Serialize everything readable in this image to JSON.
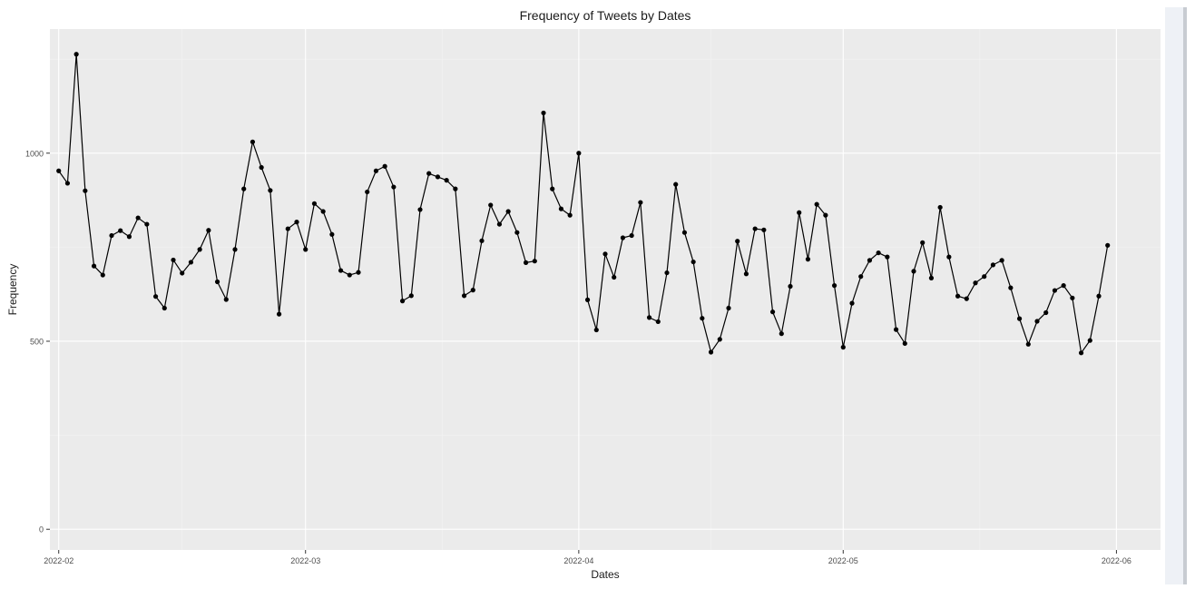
{
  "chart_data": {
    "type": "line",
    "title": "Frequency of Tweets by Dates",
    "xlabel": "Dates",
    "ylabel": "Frequency",
    "x_ticks": [
      "2022-02",
      "2022-03",
      "2022-04",
      "2022-05",
      "2022-06"
    ],
    "y_ticks": [
      0,
      500,
      1000
    ],
    "xlim": [
      "2022-01-31",
      "2022-06-06"
    ],
    "ylim": [
      -55,
      1330
    ],
    "grid": true,
    "legend": "none",
    "colors": {
      "panel": "#ebebeb",
      "grid_major": "#ffffff",
      "grid_minor": "#f3f3f3",
      "line": "#000000",
      "text": "#1a1a1a",
      "tick_text": "#4d4d4d"
    },
    "series": [
      {
        "x": [
          "2022-02-01",
          "2022-02-02",
          "2022-02-03",
          "2022-02-04",
          "2022-02-05",
          "2022-02-06",
          "2022-02-07",
          "2022-02-08",
          "2022-02-09",
          "2022-02-10",
          "2022-02-11",
          "2022-02-12",
          "2022-02-13",
          "2022-02-14",
          "2022-02-15",
          "2022-02-16",
          "2022-02-17",
          "2022-02-18",
          "2022-02-19",
          "2022-02-20",
          "2022-02-21",
          "2022-02-22",
          "2022-02-23",
          "2022-02-24",
          "2022-02-25",
          "2022-02-26",
          "2022-02-27",
          "2022-02-28",
          "2022-03-01",
          "2022-03-02",
          "2022-03-03",
          "2022-03-04",
          "2022-03-05",
          "2022-03-06",
          "2022-03-07",
          "2022-03-08",
          "2022-03-09",
          "2022-03-10",
          "2022-03-11",
          "2022-03-12",
          "2022-03-13",
          "2022-03-14",
          "2022-03-15",
          "2022-03-16",
          "2022-03-17",
          "2022-03-18",
          "2022-03-19",
          "2022-03-20",
          "2022-03-21",
          "2022-03-22",
          "2022-03-23",
          "2022-03-24",
          "2022-03-25",
          "2022-03-26",
          "2022-03-27",
          "2022-03-28",
          "2022-03-29",
          "2022-03-30",
          "2022-03-31",
          "2022-04-01",
          "2022-04-02",
          "2022-04-03",
          "2022-04-04",
          "2022-04-05",
          "2022-04-06",
          "2022-04-07",
          "2022-04-08",
          "2022-04-09",
          "2022-04-10",
          "2022-04-11",
          "2022-04-12",
          "2022-04-13",
          "2022-04-14",
          "2022-04-15",
          "2022-04-16",
          "2022-04-17",
          "2022-04-18",
          "2022-04-19",
          "2022-04-20",
          "2022-04-21",
          "2022-04-22",
          "2022-04-23",
          "2022-04-24",
          "2022-04-25",
          "2022-04-26",
          "2022-04-27",
          "2022-04-28",
          "2022-04-29",
          "2022-04-30",
          "2022-05-01",
          "2022-05-02",
          "2022-05-03",
          "2022-05-04",
          "2022-05-05",
          "2022-05-06",
          "2022-05-07",
          "2022-05-08",
          "2022-05-09",
          "2022-05-10",
          "2022-05-11",
          "2022-05-12",
          "2022-05-13",
          "2022-05-14",
          "2022-05-15",
          "2022-05-16",
          "2022-05-17",
          "2022-05-18",
          "2022-05-19",
          "2022-05-20",
          "2022-05-21",
          "2022-05-22",
          "2022-05-23",
          "2022-05-24",
          "2022-05-25",
          "2022-05-26",
          "2022-05-27",
          "2022-05-28",
          "2022-05-29",
          "2022-05-30",
          "2022-05-31"
        ],
        "y": [
          953,
          920,
          1263,
          900,
          700,
          676,
          781,
          794,
          778,
          828,
          811,
          619,
          588,
          716,
          681,
          710,
          744,
          795,
          658,
          611,
          744,
          905,
          1030,
          962,
          901,
          572,
          799,
          817,
          744,
          866,
          845,
          784,
          688,
          676,
          683,
          897,
          953,
          965,
          910,
          607,
          621,
          850,
          946,
          937,
          928,
          905,
          621,
          636,
          767,
          862,
          811,
          845,
          789,
          709,
          713,
          1107,
          905,
          852,
          835,
          1000,
          610,
          530,
          732,
          670,
          775,
          781,
          869,
          563,
          552,
          682,
          917,
          789,
          711,
          561,
          471,
          505,
          588,
          766,
          679,
          799,
          796,
          578,
          520,
          646,
          842,
          718,
          864,
          835,
          648,
          484,
          601,
          672,
          715,
          735,
          724,
          531,
          494,
          686,
          762,
          668,
          856,
          724,
          620,
          613,
          655,
          672,
          703,
          715,
          642,
          560,
          492,
          553,
          576,
          635,
          648,
          615,
          469,
          502,
          620,
          755
        ]
      }
    ]
  }
}
